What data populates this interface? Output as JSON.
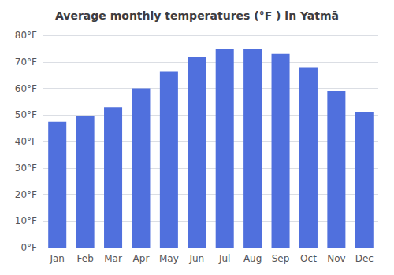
{
  "chart_data": {
    "type": "bar",
    "title": "Average monthly temperatures (°F ) in Yatmā",
    "categories": [
      "Jan",
      "Feb",
      "Mar",
      "Apr",
      "May",
      "Jun",
      "Jul",
      "Aug",
      "Sep",
      "Oct",
      "Nov",
      "Dec"
    ],
    "values": [
      47.5,
      49.5,
      53.0,
      60.0,
      66.5,
      72.0,
      75.0,
      75.0,
      73.0,
      68.0,
      59.0,
      51.0
    ],
    "ylim": [
      0,
      80
    ],
    "yticks": [
      {
        "value": 0,
        "label": "0°F"
      },
      {
        "value": 10,
        "label": "10°F"
      },
      {
        "value": 20,
        "label": "20°F"
      },
      {
        "value": 30,
        "label": "30°F"
      },
      {
        "value": 40,
        "label": "40°F"
      },
      {
        "value": 50,
        "label": "50°F"
      },
      {
        "value": 60,
        "label": "60°F"
      },
      {
        "value": 70,
        "label": "70°F"
      },
      {
        "value": 80,
        "label": "80°F"
      }
    ],
    "grid": true
  }
}
